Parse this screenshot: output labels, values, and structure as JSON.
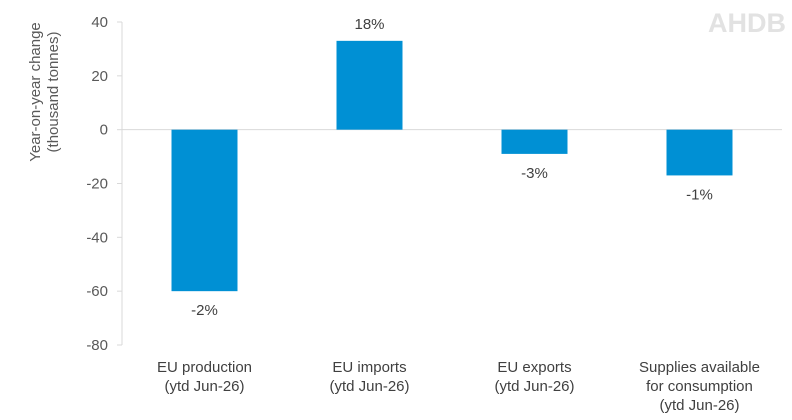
{
  "logo": {
    "text": "AHDB"
  },
  "chart_data": {
    "type": "bar",
    "title": "",
    "xlabel": "",
    "ylabel": "Year-on-year change (thousand tonnes)",
    "ylabel_lines": [
      "Year-on-year change",
      "(thousand tonnes)"
    ],
    "ylim": [
      -80,
      40
    ],
    "yticks": [
      40,
      20,
      0,
      -20,
      -40,
      -60,
      -80
    ],
    "grid": false,
    "categories": [
      "EU production (ytd Jun-26)",
      "EU imports (ytd Jun-26)",
      "EU exports (ytd Jun-26)",
      "Supplies available for consumption (ytd Jun-26)"
    ],
    "category_lines": [
      [
        "EU production",
        "(ytd Jun-26)"
      ],
      [
        "EU imports",
        "(ytd Jun-26)"
      ],
      [
        "EU exports",
        "(ytd Jun-26)"
      ],
      [
        "Supplies available",
        "for consumption",
        "(ytd Jun-26)"
      ]
    ],
    "values": [
      -60,
      33,
      -9,
      -17
    ],
    "data_labels": [
      "-2%",
      "18%",
      "-3%",
      "-1%"
    ],
    "bar_color": "#0090d4"
  }
}
